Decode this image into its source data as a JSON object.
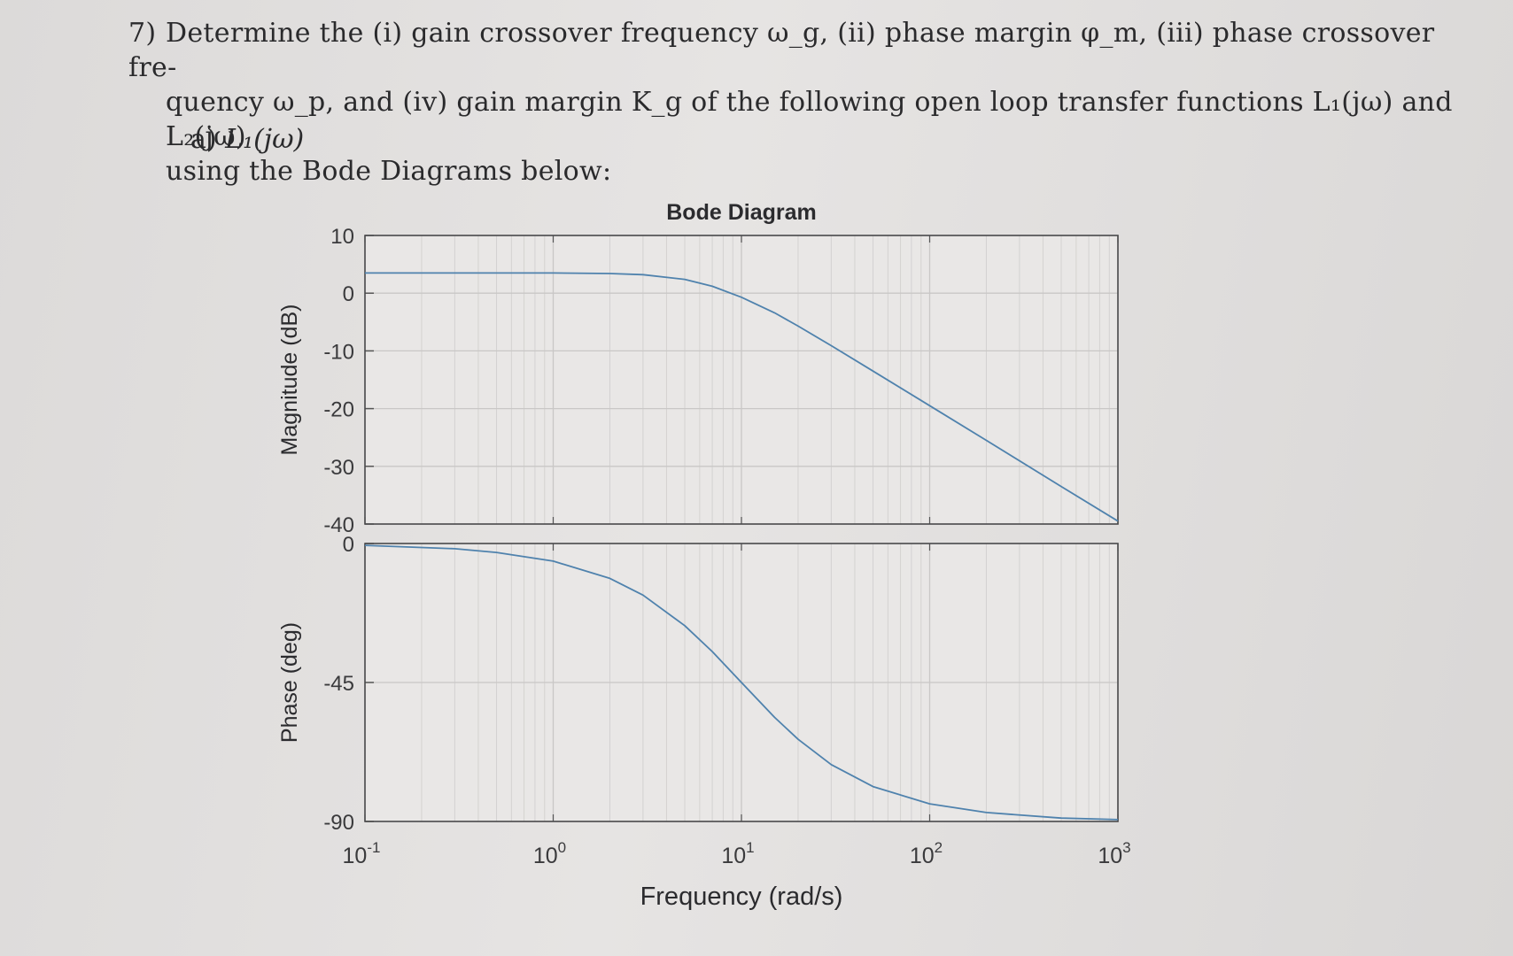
{
  "problem": {
    "number": "7)",
    "line1": "Determine the (i) gain crossover frequency ω_g, (ii) phase margin φ_m, (iii) phase crossover fre-",
    "line2": "quency ω_p, and (iv) gain margin K_g of the following open loop transfer functions L₁(jω) and L₂(jω)",
    "line3": "using the Bode Diagrams below:",
    "part_label": "a)",
    "part_function": "L₁(jω)"
  },
  "chart_data": {
    "type": "line",
    "title": "Bode Diagram",
    "xlabel": "Frequency (rad/s)",
    "xscale": "log",
    "xlim": [
      0.1,
      1000
    ],
    "xticks": [
      0.1,
      1,
      10,
      100,
      1000
    ],
    "xtick_labels": [
      {
        "base": "10",
        "exp": "-1"
      },
      {
        "base": "10",
        "exp": "0"
      },
      {
        "base": "10",
        "exp": "1"
      },
      {
        "base": "10",
        "exp": "2"
      },
      {
        "base": "10",
        "exp": "3"
      }
    ],
    "grid": true,
    "subplots": [
      {
        "name": "magnitude",
        "ylabel": "Magnitude (dB)",
        "ylim": [
          -40,
          10
        ],
        "yticks": [
          10,
          0,
          -10,
          -20,
          -30,
          -40
        ],
        "series": [
          {
            "x": [
              0.1,
              0.3,
              1,
              2,
              3,
              5,
              7,
              10,
              15,
              20,
              30,
              50,
              100,
              200,
              500,
              1000
            ],
            "y": [
              3.5,
              3.5,
              3.5,
              3.4,
              3.2,
              2.4,
              1.2,
              -0.7,
              -3.4,
              -5.7,
              -9.1,
              -13.5,
              -19.5,
              -25.5,
              -33.5,
              -39.5
            ]
          }
        ]
      },
      {
        "name": "phase",
        "ylabel": "Phase (deg)",
        "ylim": [
          -90,
          0
        ],
        "yticks": [
          0,
          -45,
          -90
        ],
        "series": [
          {
            "x": [
              0.1,
              0.3,
              0.5,
              1,
              2,
              3,
              5,
              7,
              10,
              15,
              20,
              30,
              50,
              100,
              200,
              500,
              1000
            ],
            "y": [
              -0.6,
              -1.7,
              -2.9,
              -5.7,
              -11.3,
              -16.7,
              -26.6,
              -35,
              -45,
              -56.3,
              -63.4,
              -71.6,
              -78.7,
              -84.3,
              -87.1,
              -88.9,
              -89.4
            ]
          }
        ]
      }
    ]
  }
}
